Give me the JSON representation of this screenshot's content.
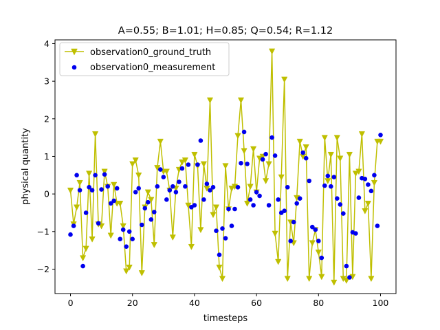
{
  "chart_data": {
    "type": "line",
    "title": "A=0.55; B=1.01; H=0.85; Q=0.54; R=1.12",
    "xlabel": "timesteps",
    "ylabel": "physical quantity",
    "xlim": [
      -5,
      105
    ],
    "ylim": [
      -2.65,
      4.1
    ],
    "xticks": [
      0,
      20,
      40,
      60,
      80,
      100
    ],
    "yticks": [
      -2,
      -1,
      0,
      1,
      2,
      3,
      4
    ],
    "grid": false,
    "legend_position": "top-left",
    "x": [
      0,
      1,
      2,
      3,
      4,
      5,
      6,
      7,
      8,
      9,
      10,
      11,
      12,
      13,
      14,
      15,
      16,
      17,
      18,
      19,
      20,
      21,
      22,
      23,
      24,
      25,
      26,
      27,
      28,
      29,
      30,
      31,
      32,
      33,
      34,
      35,
      36,
      37,
      38,
      39,
      40,
      41,
      42,
      43,
      44,
      45,
      46,
      47,
      48,
      49,
      50,
      51,
      52,
      53,
      54,
      55,
      56,
      57,
      58,
      59,
      60,
      61,
      62,
      63,
      64,
      65,
      66,
      67,
      68,
      69,
      70,
      71,
      72,
      73,
      74,
      75,
      76,
      77,
      78,
      79,
      80,
      81,
      82,
      83,
      84,
      85,
      86,
      87,
      88,
      89,
      90,
      91,
      92,
      93,
      94,
      95,
      96,
      97,
      98,
      99,
      100
    ],
    "series": [
      {
        "name": "observation0_ground_truth",
        "color": "#bfbf00",
        "marker": "triangle-down",
        "values": [
          0.1,
          -0.8,
          -0.35,
          0.3,
          -1.7,
          -1.45,
          0.55,
          -1.2,
          1.6,
          -0.8,
          -0.85,
          0.6,
          0.2,
          -1.1,
          0.25,
          -0.25,
          -0.25,
          -0.85,
          -2.05,
          -1.95,
          0.8,
          0.9,
          0.5,
          -2.1,
          -0.35,
          0.05,
          -0.15,
          -1.35,
          0.7,
          1.4,
          0.6,
          0.6,
          0.1,
          -1.15,
          0.15,
          0.65,
          0.85,
          0.9,
          -0.3,
          -1.4,
          1.05,
          0.75,
          -0.95,
          0.8,
          0.15,
          2.5,
          -0.55,
          -0.35,
          -1.95,
          -2.25,
          0.75,
          -0.4,
          0.15,
          0.2,
          1.55,
          2.5,
          1.15,
          -0.25,
          0.2,
          1.2,
          0.05,
          0.95,
          1.0,
          0.35,
          0.8,
          3.8,
          -1.05,
          -1.8,
          0.45,
          3.05,
          -2.25,
          -0.75,
          -1.3,
          -0.1,
          1.4,
          1.0,
          1.25,
          -2.25,
          -1.3,
          -0.95,
          -1.55,
          -2.2,
          1.5,
          0.35,
          1.05,
          -2.35,
          1.5,
          0.95,
          -2.25,
          -2.3,
          1.05,
          -2.2,
          0.55,
          0.6,
          1.6,
          -0.45,
          -0.25,
          -2.25,
          0.3,
          1.4,
          1.4
        ]
      },
      {
        "name": "observation0_measurement",
        "color": "#0000ee",
        "marker": "circle",
        "values": [
          -1.08,
          -0.85,
          0.5,
          0.1,
          -1.92,
          -0.5,
          0.18,
          0.1,
          0.5,
          -0.78,
          0.12,
          0.52,
          0.2,
          -0.25,
          -0.18,
          0.15,
          -1.2,
          -0.95,
          -1.4,
          -1.0,
          -1.2,
          0.05,
          0.15,
          -0.82,
          -0.38,
          -0.22,
          -0.68,
          -0.48,
          0.2,
          0.65,
          0.45,
          -0.15,
          0.1,
          0.2,
          0.05,
          0.32,
          0.68,
          0.2,
          0.78,
          -0.35,
          -0.3,
          0.78,
          1.42,
          -0.15,
          0.27,
          0.1,
          0.18,
          -0.98,
          -1.62,
          -0.92,
          -1.18,
          -0.4,
          -0.85,
          -0.4,
          0.18,
          0.82,
          1.65,
          0.8,
          -0.15,
          -0.3,
          0.05,
          -0.05,
          0.92,
          1.06,
          -0.3,
          1.5,
          1.02,
          -0.15,
          -0.5,
          -0.45,
          0.18,
          -1.25,
          -0.75,
          -0.25,
          -0.12,
          1.1,
          0.95,
          0.35,
          -0.88,
          -0.95,
          -1.25,
          -1.7,
          0.22,
          0.48,
          0.2,
          0.45,
          -0.12,
          -0.28,
          -0.52,
          -1.92,
          -2.22,
          -1.02,
          -1.05,
          -0.1,
          0.42,
          0.4,
          0.25,
          0.08,
          0.5,
          -0.85,
          1.57
        ]
      }
    ]
  }
}
